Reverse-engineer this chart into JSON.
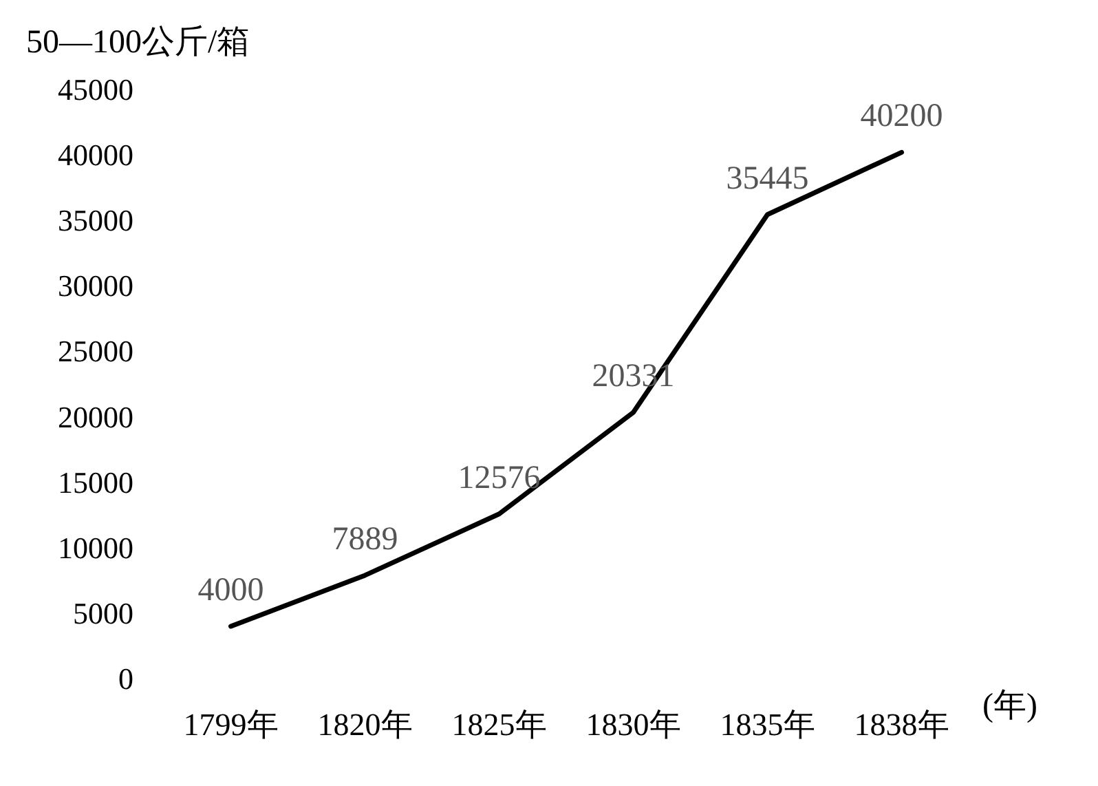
{
  "chart_data": {
    "type": "line",
    "ylabel": "50—100公斤/箱",
    "xlabel": "(年)",
    "categories": [
      "1799年",
      "1820年",
      "1825年",
      "1830年",
      "1835年",
      "1838年"
    ],
    "series": [
      {
        "color": "#000000",
        "values": [
          4000,
          7889,
          12576,
          20331,
          35445,
          40200
        ]
      }
    ],
    "ylim": [
      0,
      45000
    ],
    "yticks": [
      0,
      5000,
      10000,
      15000,
      20000,
      25000,
      30000,
      35000,
      40000,
      45000
    ],
    "data_labels": true,
    "grid": false,
    "marker": "none",
    "line_style": "solid"
  }
}
